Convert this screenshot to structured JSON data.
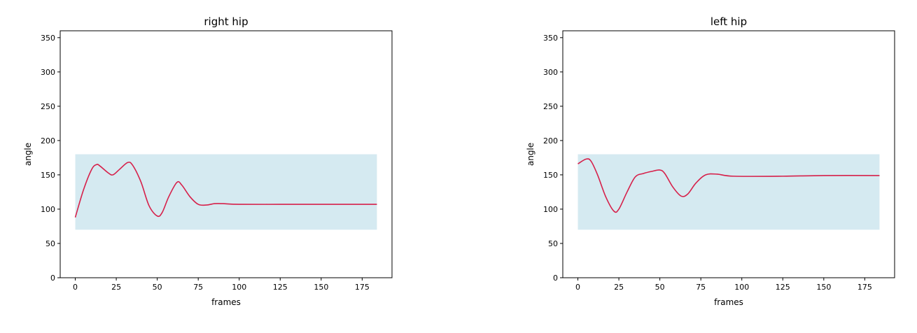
{
  "chart_data": [
    {
      "type": "line",
      "title": "right hip",
      "xlabel": "frames",
      "ylabel": "angle",
      "x": [
        0,
        5,
        10,
        13,
        15,
        20,
        23,
        27,
        32,
        35,
        40,
        45,
        50,
        53,
        57,
        62,
        65,
        70,
        75,
        80,
        85,
        90,
        100,
        125,
        150,
        184
      ],
      "values": [
        88,
        128,
        158,
        165,
        163,
        153,
        150,
        158,
        168,
        164,
        140,
        105,
        90,
        95,
        118,
        139,
        135,
        118,
        107,
        106,
        108,
        108,
        107,
        107,
        107,
        107
      ],
      "color": "#d6204a",
      "band_x": [
        0,
        184
      ],
      "band_y": [
        70,
        180
      ],
      "band_color": "#d5eaf1",
      "xlim": [
        -9.2,
        193.2
      ],
      "ylim": [
        0,
        360
      ],
      "xticks": [
        0,
        25,
        50,
        75,
        100,
        125,
        150,
        175
      ],
      "yticks": [
        0,
        50,
        100,
        150,
        200,
        250,
        300,
        350
      ]
    },
    {
      "type": "line",
      "title": "left hip",
      "xlabel": "frames",
      "ylabel": "angle",
      "x": [
        0,
        5,
        8,
        12,
        17,
        22,
        25,
        30,
        35,
        40,
        45,
        50,
        53,
        58,
        63,
        67,
        72,
        78,
        85,
        95,
        125,
        150,
        184
      ],
      "values": [
        166,
        173,
        170,
        150,
        118,
        97,
        100,
        125,
        147,
        152,
        155,
        157,
        152,
        132,
        119,
        122,
        138,
        150,
        151,
        148,
        148,
        149,
        149
      ],
      "color": "#d6204a",
      "band_x": [
        0,
        184
      ],
      "band_y": [
        70,
        180
      ],
      "band_color": "#d5eaf1",
      "xlim": [
        -9.2,
        193.2
      ],
      "ylim": [
        0,
        360
      ],
      "xticks": [
        0,
        25,
        50,
        75,
        100,
        125,
        150,
        175
      ],
      "yticks": [
        0,
        50,
        100,
        150,
        200,
        250,
        300,
        350
      ]
    }
  ]
}
